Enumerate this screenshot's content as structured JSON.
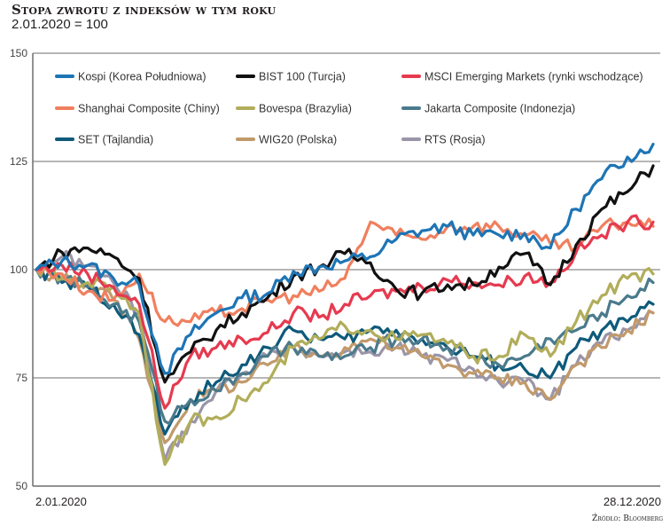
{
  "header": {
    "title": "Stopa zwrotu z indeksów w tym roku",
    "subtitle": "2.01.2020 = 100"
  },
  "footer": {
    "source": "Źródło: Bloomberg"
  },
  "chart_data": {
    "type": "line",
    "title": "Stopa zwrotu z indeksów w tym roku",
    "subtitle": "2.01.2020 = 100",
    "xlabel": "",
    "ylabel": "",
    "x_start_label": "2.01.2020",
    "x_end_label": "28.12.2020",
    "ylim": [
      50,
      150
    ],
    "yticks": [
      50,
      75,
      100,
      125,
      150
    ],
    "grid": true,
    "legend_position": "top",
    "x": [
      "2020-01-02",
      "2020-01-16",
      "2020-02-01",
      "2020-02-15",
      "2020-03-01",
      "2020-03-16",
      "2020-04-01",
      "2020-04-15",
      "2020-05-01",
      "2020-05-15",
      "2020-06-01",
      "2020-06-15",
      "2020-07-01",
      "2020-07-15",
      "2020-08-01",
      "2020-08-15",
      "2020-09-01",
      "2020-09-15",
      "2020-10-01",
      "2020-10-15",
      "2020-11-01",
      "2020-11-15",
      "2020-12-01",
      "2020-12-15",
      "2020-12-28"
    ],
    "series": [
      {
        "name": "Kospi (Korea Południowa)",
        "color": "#1d75b5",
        "values": [
          100,
          102,
          101,
          98,
          96.5,
          76,
          85,
          90,
          93.5,
          94.5,
          99.6,
          100.6,
          102,
          103,
          107,
          109,
          110,
          108,
          108,
          108.4,
          105,
          114,
          121,
          126,
          129
        ]
      },
      {
        "name": "BIST 100 (Turcja)",
        "color": "#111111",
        "values": [
          100,
          104,
          105,
          103,
          98,
          74,
          81,
          86,
          90,
          93.5,
          98.5,
          100.6,
          103.7,
          101.6,
          95.5,
          94.5,
          96.5,
          96.5,
          100.6,
          103.7,
          96.5,
          105.7,
          114,
          118,
          124
        ]
      },
      {
        "name": "MSCI Emerging Markets (rynki wschodzące)",
        "color": "#e63a4f",
        "values": [
          100,
          101,
          99,
          96,
          92,
          68,
          80,
          82,
          84,
          85.5,
          90,
          89,
          92,
          94,
          95,
          96,
          97.6,
          97,
          96.5,
          98.5,
          97,
          104,
          108,
          111,
          111
        ]
      },
      {
        "name": "Shanghai Composite (Chiny)",
        "color": "#f07f5e",
        "values": [
          100,
          99,
          95,
          93,
          99,
          88,
          88,
          90,
          91,
          93,
          94,
          95,
          98,
          111,
          108,
          107,
          110,
          110,
          110,
          108,
          106,
          105,
          110,
          111,
          110
        ]
      },
      {
        "name": "Bovespa (Brazylia)",
        "color": "#b1ad5a",
        "values": [
          100,
          98,
          97,
          96,
          90,
          55,
          65,
          66,
          70,
          74,
          82,
          84,
          87,
          86,
          84,
          85,
          83,
          80,
          80,
          85,
          80,
          88,
          94,
          98,
          99
        ]
      },
      {
        "name": "Jakarta Composite (Indonezja)",
        "color": "#4a7a8c",
        "values": [
          100,
          98,
          96,
          92,
          88,
          65,
          70,
          72,
          76,
          80,
          82,
          80,
          80,
          82,
          84,
          84,
          82,
          80,
          78,
          80,
          84,
          86,
          90,
          94,
          97
        ]
      },
      {
        "name": "SET (Tajlandia)",
        "color": "#0e5a7a",
        "values": [
          100,
          97,
          96,
          92,
          85,
          62,
          70,
          74,
          78,
          82,
          86,
          84,
          84,
          86,
          86,
          84,
          82,
          80,
          78,
          77,
          75,
          82,
          86,
          88,
          92
        ]
      },
      {
        "name": "WIG20 (Polska)",
        "color": "#c19a6b",
        "values": [
          100,
          98,
          97,
          93,
          84,
          60,
          70,
          72,
          74,
          78,
          82,
          80,
          82,
          84,
          82,
          80,
          78,
          76,
          75,
          74,
          70,
          78,
          82,
          86,
          90
        ]
      },
      {
        "name": "RTS (Rosja)",
        "color": "#9a95a8",
        "values": [
          100,
          103,
          101,
          97,
          90,
          56,
          65,
          72,
          76,
          80,
          82,
          80,
          81,
          81,
          82,
          80,
          79,
          77,
          74,
          74,
          70,
          78,
          83,
          86,
          90
        ]
      }
    ]
  }
}
